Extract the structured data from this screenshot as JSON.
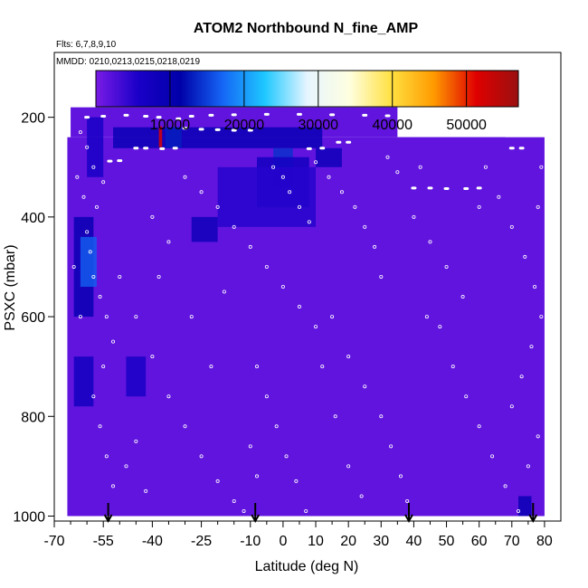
{
  "chart_data": {
    "type": "heatmap",
    "title": "ATOM2 Northbound N_fine_AMP",
    "flights_label": "Flts: 6,7,8,9,10",
    "dates_label": "MMDD: 0210,0213,0215,0218,0219",
    "xlabel": "Latitude (deg N)",
    "ylabel": "PSXC (mbar)",
    "xlim": [
      -70,
      85
    ],
    "ylim": [
      1010,
      70
    ],
    "x_ticks": [
      -70,
      -55,
      -40,
      -25,
      -10,
      0,
      10,
      20,
      30,
      40,
      50,
      60,
      70,
      80
    ],
    "x_tick_labels": [
      "-70",
      "-55",
      "-40",
      "-25",
      "-10",
      "0",
      "10",
      "20",
      "30",
      "40",
      "50",
      "60",
      "70",
      "80"
    ],
    "y_ticks": [
      200,
      400,
      600,
      800,
      1000
    ],
    "y_tick_labels": [
      "200",
      "400",
      "600",
      "800",
      "1000"
    ],
    "colorbar": {
      "min": 0,
      "max": 57000,
      "ticks": [
        10000,
        20000,
        30000,
        40000,
        50000
      ],
      "tick_labels": [
        "10000",
        "20000",
        "30000",
        "40000",
        "50000"
      ],
      "colors": [
        "#7a1be6",
        "#1a00c8",
        "#0000a8",
        "#1566f5",
        "#1ec8ff",
        "#e6f5ff",
        "#ffffe0",
        "#ffe040",
        "#ff9a00",
        "#e00000",
        "#9a1010"
      ]
    },
    "background_value": 1500,
    "field_coverage": [
      {
        "lat": [
          -65,
          35
        ],
        "p": [
          180,
          240
        ]
      },
      {
        "lat": [
          35,
          68
        ],
        "p": [
          240,
          270
        ]
      },
      {
        "lat": [
          -66,
          80
        ],
        "p": [
          240,
          1000
        ]
      }
    ],
    "enhanced_regions": [
      {
        "lat": [
          -64,
          -58
        ],
        "p": [
          400,
          600
        ],
        "value": 9500
      },
      {
        "lat": [
          -62,
          -57
        ],
        "p": [
          440,
          540
        ],
        "value": 16500
      },
      {
        "lat": [
          -60,
          -55
        ],
        "p": [
          200,
          320
        ],
        "value": 6000
      },
      {
        "lat": [
          -52,
          12
        ],
        "p": [
          220,
          262
        ],
        "value": 9000
      },
      {
        "lat": [
          -36,
          -31
        ],
        "p": [
          220,
          262
        ],
        "value": 13000
      },
      {
        "lat": [
          -38,
          -37
        ],
        "p": [
          218,
          260
        ],
        "value": 52000
      },
      {
        "lat": [
          10,
          18
        ],
        "p": [
          262,
          300
        ],
        "value": 8000
      },
      {
        "lat": [
          -3,
          3
        ],
        "p": [
          262,
          340
        ],
        "value": 14000
      },
      {
        "lat": [
          -28,
          -20
        ],
        "p": [
          400,
          450
        ],
        "value": 8000
      },
      {
        "lat": [
          -8,
          8
        ],
        "p": [
          280,
          380
        ],
        "value": 7000
      },
      {
        "lat": [
          -64,
          -58
        ],
        "p": [
          680,
          780
        ],
        "value": 7000
      },
      {
        "lat": [
          -48,
          -42
        ],
        "p": [
          680,
          760
        ],
        "value": 6000
      },
      {
        "lat": [
          72,
          76
        ],
        "p": [
          960,
          1000
        ],
        "value": 9000
      },
      {
        "lat": [
          -20,
          10
        ],
        "p": [
          300,
          420
        ],
        "value": 5000
      }
    ],
    "arrows_lat": [
      -53.5,
      -8.5,
      38.5,
      76.5
    ],
    "flight_track_points": [
      {
        "lat": -60,
        "p": 200
      },
      {
        "lat": -55,
        "p": 198
      },
      {
        "lat": -48,
        "p": 196
      },
      {
        "lat": -42,
        "p": 198
      },
      {
        "lat": -38,
        "p": 200
      },
      {
        "lat": -32,
        "p": 203
      },
      {
        "lat": -28,
        "p": 198
      },
      {
        "lat": -22,
        "p": 196
      },
      {
        "lat": -15,
        "p": 195
      },
      {
        "lat": -5,
        "p": 194
      },
      {
        "lat": 5,
        "p": 194
      },
      {
        "lat": 15,
        "p": 195
      },
      {
        "lat": 25,
        "p": 196
      },
      {
        "lat": 32,
        "p": 197
      },
      {
        "lat": -30,
        "p": 222
      },
      {
        "lat": -25,
        "p": 224
      },
      {
        "lat": -20,
        "p": 225
      },
      {
        "lat": -15,
        "p": 226
      },
      {
        "lat": -10,
        "p": 226
      },
      {
        "lat": -53,
        "p": 288
      },
      {
        "lat": -50,
        "p": 287
      },
      {
        "lat": -45,
        "p": 262
      },
      {
        "lat": -42,
        "p": 262
      },
      {
        "lat": -37,
        "p": 263
      },
      {
        "lat": -33,
        "p": 262
      },
      {
        "lat": 8,
        "p": 263
      },
      {
        "lat": 12,
        "p": 262
      },
      {
        "lat": 17,
        "p": 250
      },
      {
        "lat": 20,
        "p": 250
      },
      {
        "lat": 40,
        "p": 342
      },
      {
        "lat": 45,
        "p": 342
      },
      {
        "lat": 50,
        "p": 343
      },
      {
        "lat": 56,
        "p": 343
      },
      {
        "lat": 60,
        "p": 342
      },
      {
        "lat": 70,
        "p": 262
      },
      {
        "lat": 73,
        "p": 262
      }
    ],
    "sample_points": [
      {
        "lat": -62,
        "p": 230
      },
      {
        "lat": -60,
        "p": 260
      },
      {
        "lat": -58,
        "p": 300
      },
      {
        "lat": -55,
        "p": 330
      },
      {
        "lat": -57,
        "p": 380
      },
      {
        "lat": -60,
        "p": 430
      },
      {
        "lat": -59,
        "p": 470
      },
      {
        "lat": -58,
        "p": 520
      },
      {
        "lat": -56,
        "p": 560
      },
      {
        "lat": -54,
        "p": 600
      },
      {
        "lat": -52,
        "p": 650
      },
      {
        "lat": -55,
        "p": 700
      },
      {
        "lat": -58,
        "p": 760
      },
      {
        "lat": -56,
        "p": 820
      },
      {
        "lat": -54,
        "p": 880
      },
      {
        "lat": -52,
        "p": 940
      },
      {
        "lat": -48,
        "p": 900
      },
      {
        "lat": -45,
        "p": 850
      },
      {
        "lat": -50,
        "p": 520
      },
      {
        "lat": -45,
        "p": 600
      },
      {
        "lat": -40,
        "p": 680
      },
      {
        "lat": -35,
        "p": 760
      },
      {
        "lat": -30,
        "p": 820
      },
      {
        "lat": -25,
        "p": 880
      },
      {
        "lat": -20,
        "p": 930
      },
      {
        "lat": -15,
        "p": 970
      },
      {
        "lat": -12,
        "p": 990
      },
      {
        "lat": -30,
        "p": 320
      },
      {
        "lat": -25,
        "p": 350
      },
      {
        "lat": -20,
        "p": 380
      },
      {
        "lat": -15,
        "p": 420
      },
      {
        "lat": -10,
        "p": 460
      },
      {
        "lat": -5,
        "p": 500
      },
      {
        "lat": 0,
        "p": 540
      },
      {
        "lat": 5,
        "p": 580
      },
      {
        "lat": 10,
        "p": 620
      },
      {
        "lat": -8,
        "p": 700
      },
      {
        "lat": -5,
        "p": 760
      },
      {
        "lat": -2,
        "p": 820
      },
      {
        "lat": 1,
        "p": 880
      },
      {
        "lat": 4,
        "p": 930
      },
      {
        "lat": 7,
        "p": 990
      },
      {
        "lat": -3,
        "p": 300
      },
      {
        "lat": 0,
        "p": 320
      },
      {
        "lat": 2,
        "p": 350
      },
      {
        "lat": 5,
        "p": 380
      },
      {
        "lat": 8,
        "p": 410
      },
      {
        "lat": 10,
        "p": 290
      },
      {
        "lat": 14,
        "p": 320
      },
      {
        "lat": 18,
        "p": 350
      },
      {
        "lat": 22,
        "p": 380
      },
      {
        "lat": 25,
        "p": 420
      },
      {
        "lat": 28,
        "p": 460
      },
      {
        "lat": 30,
        "p": 520
      },
      {
        "lat": 15,
        "p": 600
      },
      {
        "lat": 20,
        "p": 680
      },
      {
        "lat": 25,
        "p": 740
      },
      {
        "lat": 30,
        "p": 800
      },
      {
        "lat": 33,
        "p": 860
      },
      {
        "lat": 36,
        "p": 920
      },
      {
        "lat": 38,
        "p": 970
      },
      {
        "lat": 32,
        "p": 280
      },
      {
        "lat": 35,
        "p": 310
      },
      {
        "lat": 40,
        "p": 400
      },
      {
        "lat": 45,
        "p": 450
      },
      {
        "lat": 50,
        "p": 500
      },
      {
        "lat": 55,
        "p": 560
      },
      {
        "lat": 48,
        "p": 620
      },
      {
        "lat": 52,
        "p": 700
      },
      {
        "lat": 56,
        "p": 760
      },
      {
        "lat": 60,
        "p": 820
      },
      {
        "lat": 64,
        "p": 880
      },
      {
        "lat": 68,
        "p": 940
      },
      {
        "lat": 72,
        "p": 990
      },
      {
        "lat": 62,
        "p": 300
      },
      {
        "lat": 66,
        "p": 360
      },
      {
        "lat": 70,
        "p": 420
      },
      {
        "lat": 74,
        "p": 480
      },
      {
        "lat": 77,
        "p": 540
      },
      {
        "lat": 79,
        "p": 600
      },
      {
        "lat": 76,
        "p": 660
      },
      {
        "lat": 73,
        "p": 720
      },
      {
        "lat": 70,
        "p": 780
      },
      {
        "lat": 78,
        "p": 840
      },
      {
        "lat": 75,
        "p": 900
      },
      {
        "lat": 79,
        "p": 300
      },
      {
        "lat": 78,
        "p": 380
      },
      {
        "lat": 60,
        "p": 380
      },
      {
        "lat": 42,
        "p": 300
      },
      {
        "lat": 44,
        "p": 600
      },
      {
        "lat": -40,
        "p": 400
      },
      {
        "lat": -35,
        "p": 450
      },
      {
        "lat": -38,
        "p": 520
      },
      {
        "lat": -42,
        "p": 950
      },
      {
        "lat": -28,
        "p": 600
      },
      {
        "lat": -22,
        "p": 700
      },
      {
        "lat": -18,
        "p": 550
      },
      {
        "lat": 12,
        "p": 700
      },
      {
        "lat": 16,
        "p": 800
      },
      {
        "lat": 20,
        "p": 900
      },
      {
        "lat": 24,
        "p": 960
      },
      {
        "lat": -10,
        "p": 860
      },
      {
        "lat": -8,
        "p": 920
      },
      {
        "lat": -62,
        "p": 600
      },
      {
        "lat": -64,
        "p": 500
      },
      {
        "lat": -63,
        "p": 320
      },
      {
        "lat": -61,
        "p": 360
      }
    ]
  }
}
